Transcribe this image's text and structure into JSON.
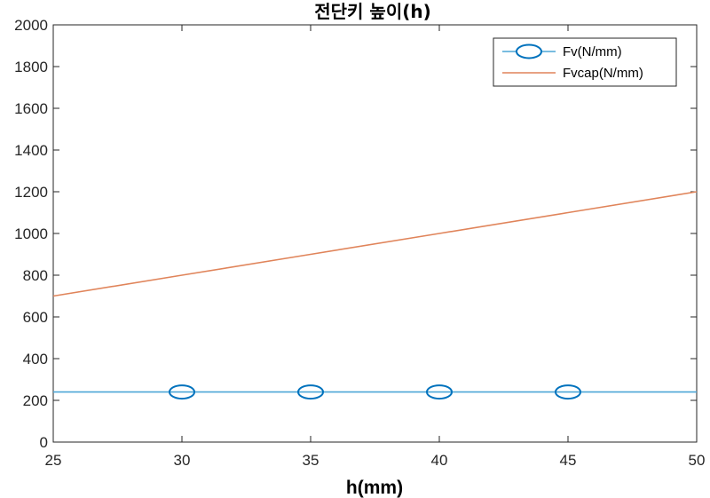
{
  "chart_data": {
    "type": "line",
    "title": "전단키 높이(h)",
    "xlabel": "h(mm)",
    "ylabel": "",
    "xlim": [
      25,
      50
    ],
    "ylim": [
      0,
      2000
    ],
    "xticks": [
      25,
      30,
      35,
      40,
      45,
      50
    ],
    "yticks": [
      0,
      200,
      400,
      600,
      800,
      1000,
      1200,
      1400,
      1600,
      1800,
      2000
    ],
    "grid": false,
    "legend_position": "top-right",
    "series": [
      {
        "name": "Fv(N/mm)",
        "color": "#0072BD",
        "line_color": "#4DA6D6",
        "marker": "ellipse",
        "x": [
          25,
          30,
          35,
          40,
          45,
          50
        ],
        "y": [
          240,
          240,
          240,
          240,
          240,
          240
        ],
        "marker_x": [
          30,
          35,
          40,
          45
        ]
      },
      {
        "name": "Fvcap(N/mm)",
        "color": "#D95319",
        "line_color": "#E0845A",
        "marker": "none",
        "x": [
          25,
          30,
          35,
          40,
          45,
          50
        ],
        "y": [
          700,
          800,
          900,
          1000,
          1100,
          1200
        ]
      }
    ]
  }
}
